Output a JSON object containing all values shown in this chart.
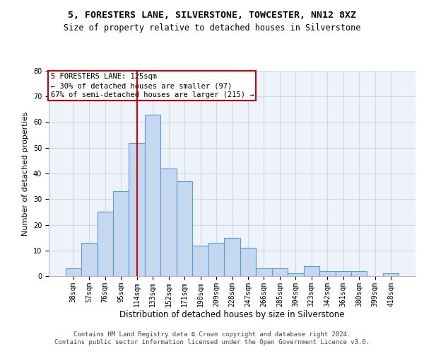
{
  "title": "5, FORESTERS LANE, SILVERSTONE, TOWCESTER, NN12 8XZ",
  "subtitle": "Size of property relative to detached houses in Silverstone",
  "xlabel": "Distribution of detached houses by size in Silverstone",
  "ylabel": "Number of detached properties",
  "categories": [
    "38sqm",
    "57sqm",
    "76sqm",
    "95sqm",
    "114sqm",
    "133sqm",
    "152sqm",
    "171sqm",
    "190sqm",
    "209sqm",
    "228sqm",
    "247sqm",
    "266sqm",
    "285sqm",
    "304sqm",
    "323sqm",
    "342sqm",
    "361sqm",
    "380sqm",
    "399sqm",
    "418sqm"
  ],
  "values": [
    3,
    13,
    25,
    33,
    52,
    63,
    42,
    37,
    12,
    13,
    15,
    11,
    3,
    3,
    1,
    4,
    2,
    2,
    2,
    0,
    1
  ],
  "bar_color": "#c5d8f0",
  "bar_edge_color": "#5b9bd5",
  "vline_x": 4.5,
  "vline_color": "#cc0000",
  "annotation_box_text": "5 FORESTERS LANE: 125sqm\n← 30% of detached houses are smaller (97)\n67% of semi-detached houses are larger (215) →",
  "annotation_box_color": "#cc0000",
  "ylim": [
    0,
    80
  ],
  "yticks": [
    0,
    10,
    20,
    30,
    40,
    50,
    60,
    70,
    80
  ],
  "grid_color": "#d0d8e8",
  "background_color": "#eef2fa",
  "footer_line1": "Contains HM Land Registry data © Crown copyright and database right 2024.",
  "footer_line2": "Contains public sector information licensed under the Open Government Licence v3.0.",
  "title_fontsize": 9.5,
  "subtitle_fontsize": 8.5,
  "xlabel_fontsize": 8.5,
  "ylabel_fontsize": 8,
  "tick_fontsize": 7,
  "annotation_fontsize": 7.5,
  "footer_fontsize": 6.5
}
